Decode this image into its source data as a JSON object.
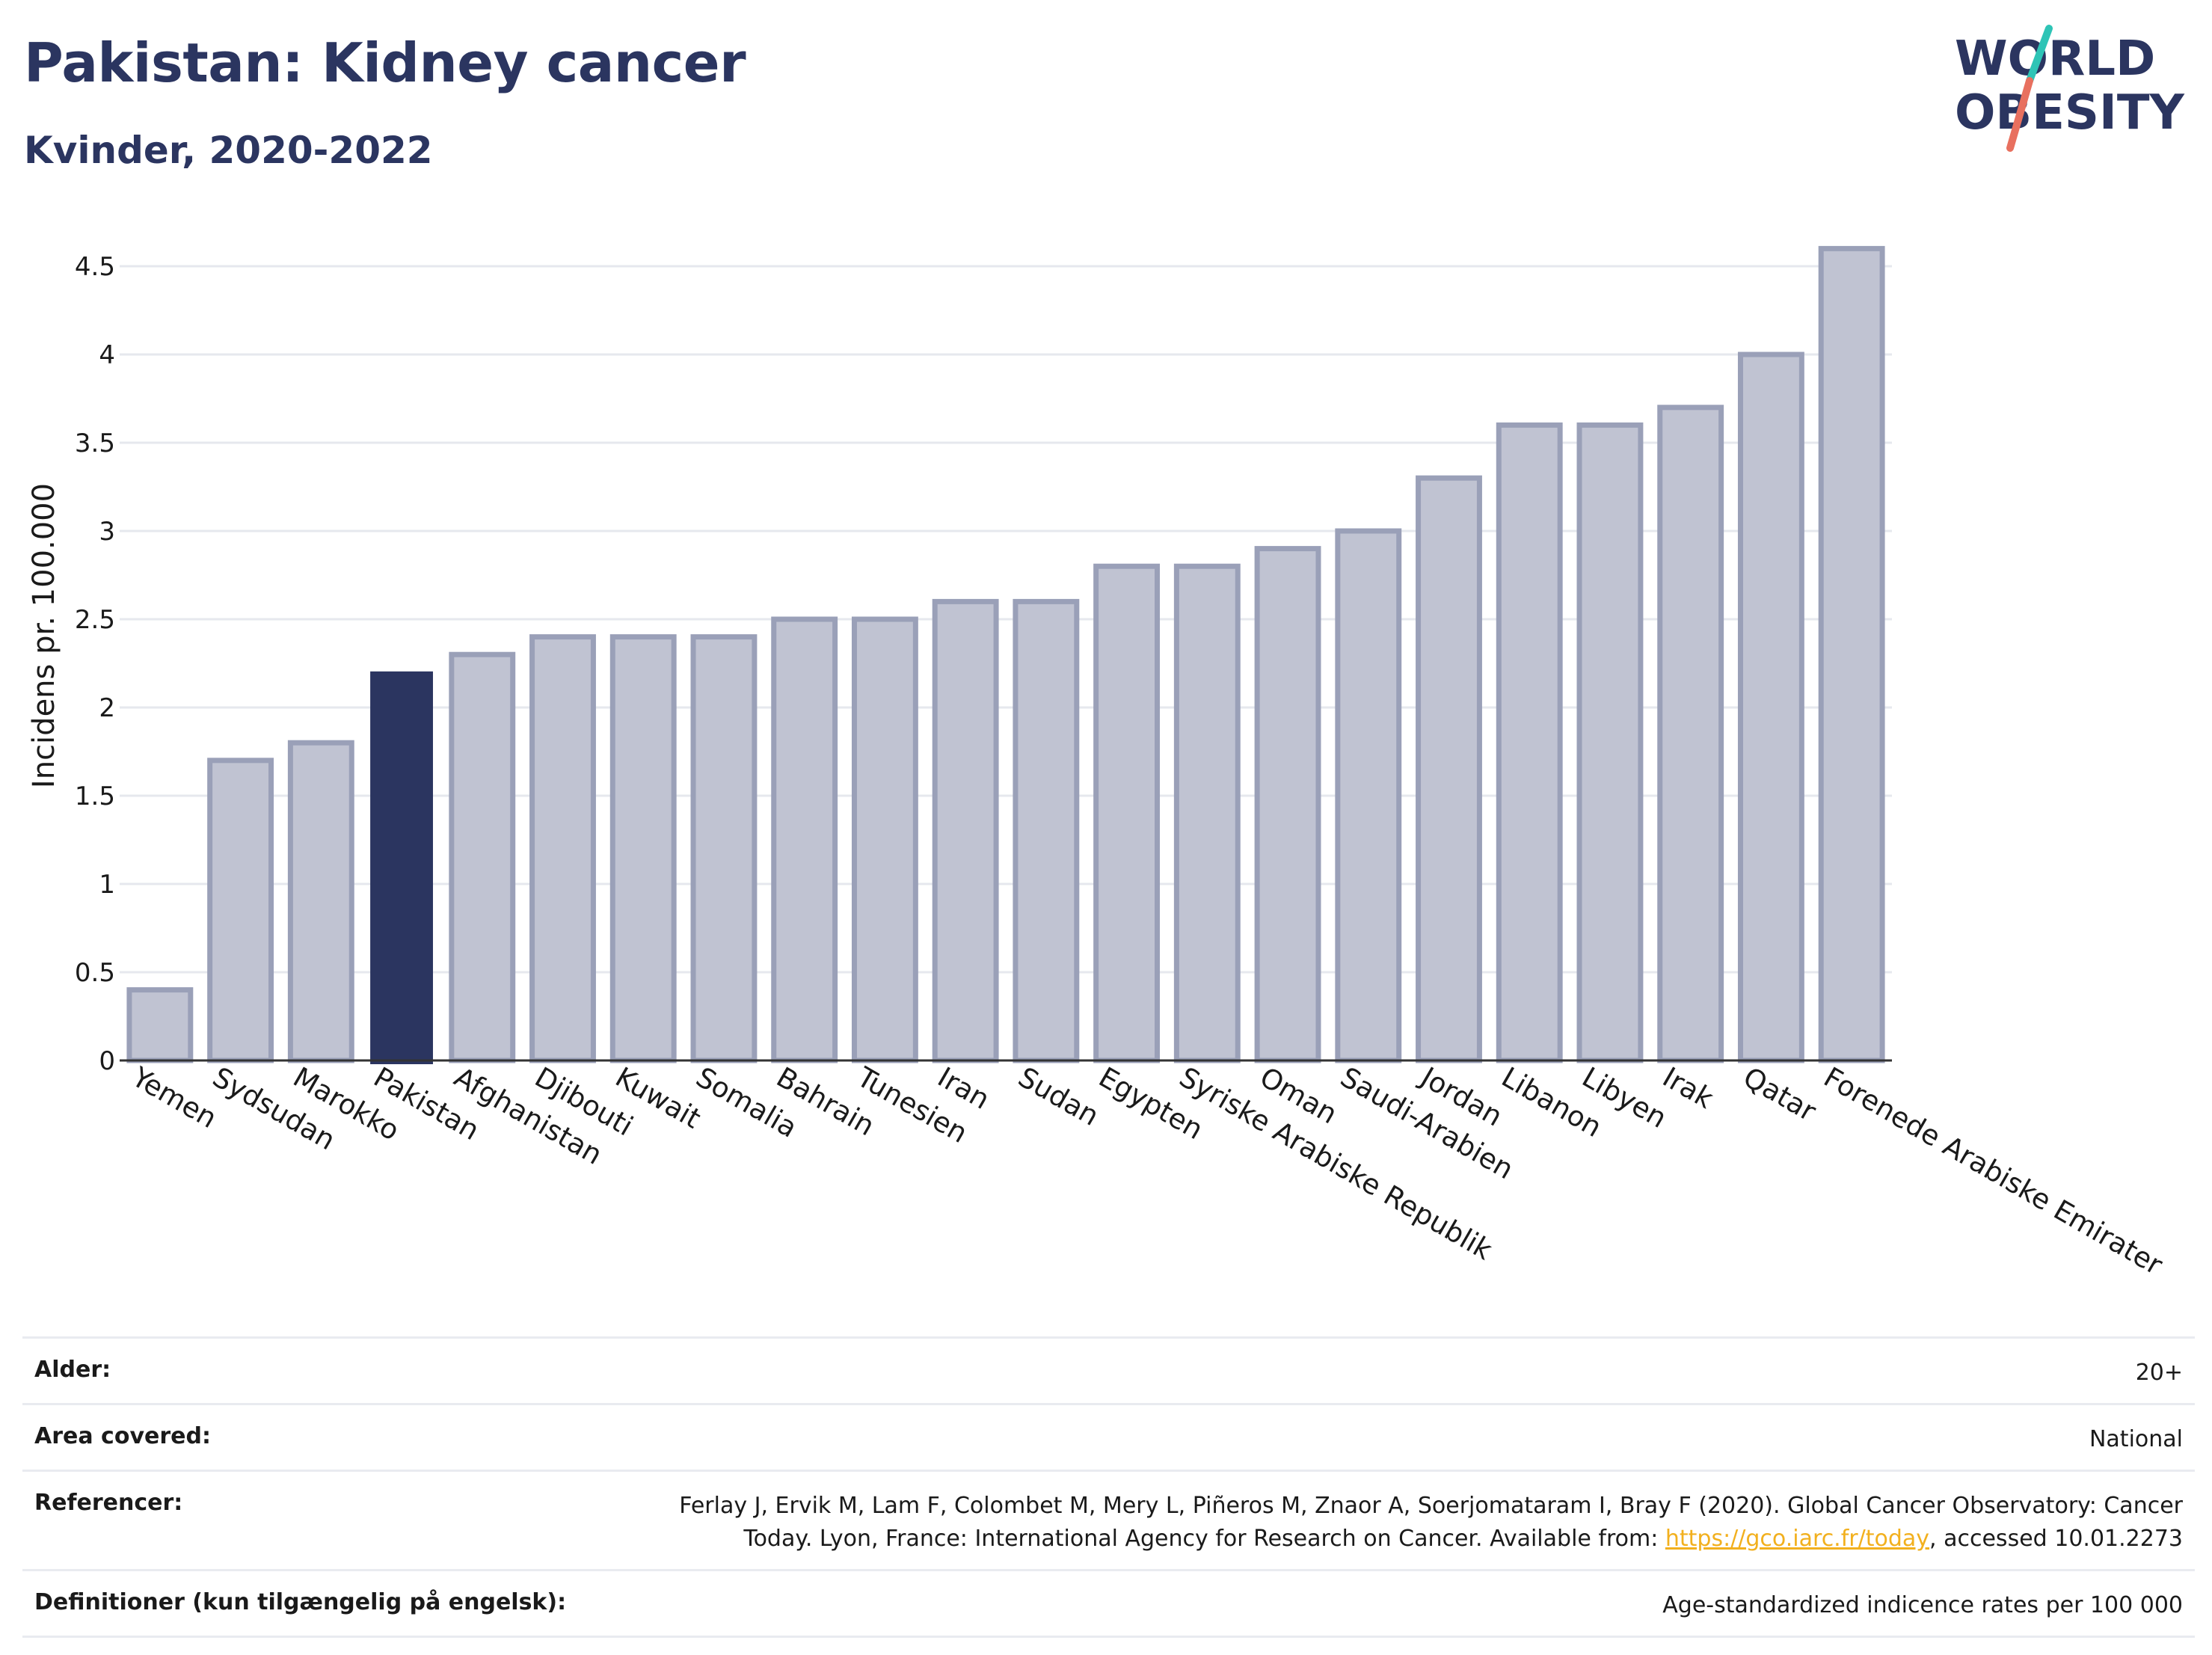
{
  "header": {
    "title": "Pakistan: Kidney cancer",
    "subtitle": "Kvinder, 2020-2022",
    "logo_line1": "WORLD",
    "logo_line2": "OBESITY"
  },
  "colors": {
    "highlight_bar": "#2b3560",
    "other_bar_fill": "#c0c3d2",
    "other_bar_stroke": "#9aa0b8",
    "title": "#2b3560",
    "logo_accent_1": "#2ec4b6",
    "logo_accent_2": "#e8705f",
    "link": "#f2b01e"
  },
  "chart_data": {
    "type": "bar",
    "ylabel": "Incidens pr. 100.000",
    "ylim": [
      0,
      4.7
    ],
    "yticks": [
      "0",
      "0.5",
      "1",
      "1.5",
      "2",
      "2.5",
      "3",
      "3.5",
      "4",
      "4.5"
    ],
    "grid": true,
    "highlight": "Pakistan",
    "categories": [
      "Yemen",
      "Sydsudan",
      "Marokko",
      "Pakistan",
      "Afghanistan",
      "Djibouti",
      "Kuwait",
      "Somalia",
      "Bahrain",
      "Tunesien",
      "Iran",
      "Sudan",
      "Egypten",
      "Syriske Arabiske Republik",
      "Oman",
      "Saudi-Arabien",
      "Jordan",
      "Libanon",
      "Libyen",
      "Irak",
      "Qatar",
      "Forenede Arabiske Emirater"
    ],
    "values": [
      0.4,
      1.7,
      1.8,
      2.2,
      2.3,
      2.4,
      2.4,
      2.4,
      2.5,
      2.5,
      2.6,
      2.6,
      2.8,
      2.8,
      2.9,
      3.0,
      3.3,
      3.6,
      3.6,
      3.7,
      4.0,
      4.6
    ]
  },
  "meta": {
    "rows": [
      {
        "label": "Alder:",
        "value": "20+"
      },
      {
        "label": "Area covered:",
        "value": "National"
      },
      {
        "label": "Referencer:",
        "value_line1": "Ferlay J, Ervik M, Lam F, Colombet M, Mery L, Piñeros M, Znaor A, Soerjomataram I, Bray F (2020). Global Cancer Observatory: Cancer",
        "value_line2_pre": "Today. Lyon, France: International Agency for Research on Cancer. Available from: ",
        "link": "https://gco.iarc.fr/today",
        "value_line2_post": ", accessed 10.01.2273"
      },
      {
        "label": "Definitioner (kun tilgængelig på engelsk):",
        "value": "Age-standardized indicence rates per 100 000"
      }
    ]
  }
}
